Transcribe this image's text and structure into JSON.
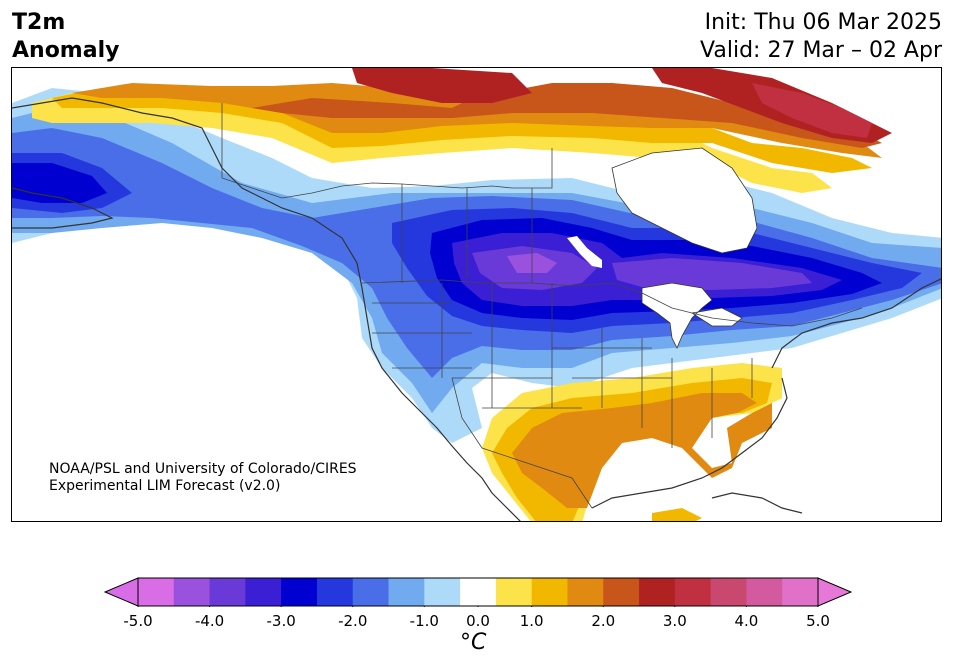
{
  "header": {
    "title_line1": "T2m",
    "title_line2": "Anomaly",
    "init_label": "Init: Thu 06 Mar 2025",
    "valid_label": "Valid: 27 Mar – 02 Apr"
  },
  "credit": {
    "line1": "NOAA/PSL and University of Colorado/CIRES",
    "line2": "Experimental LIM Forecast (v2.0)"
  },
  "colorbar": {
    "unit": "°C",
    "ticks": [
      "-5.0",
      "-4.0",
      "-3.0",
      "-2.0",
      "-1.0",
      "0.0",
      "1.0",
      "2.0",
      "3.0",
      "4.0",
      "5.0"
    ],
    "levels": [
      -5.0,
      -4.5,
      -4.0,
      -3.5,
      -3.0,
      -2.5,
      -2.0,
      -1.5,
      -1.0,
      -0.5,
      0.5,
      1.0,
      1.5,
      2.0,
      2.5,
      3.0,
      3.5,
      4.0,
      4.5,
      5.0
    ],
    "colors": [
      "#d86de6",
      "#9a52de",
      "#6a3ad8",
      "#3b1fd4",
      "#0000d0",
      "#2438de",
      "#4a6ee8",
      "#72aaf0",
      "#aedafa",
      "#ffffff",
      "#fde34a",
      "#f2b800",
      "#e08a12",
      "#c8551a",
      "#b02222",
      "#c03040",
      "#c84870",
      "#d45aa0",
      "#e070c8",
      "#e070c8"
    ],
    "under_color": "#d86de6",
    "over_color": "#e878d8"
  }
}
